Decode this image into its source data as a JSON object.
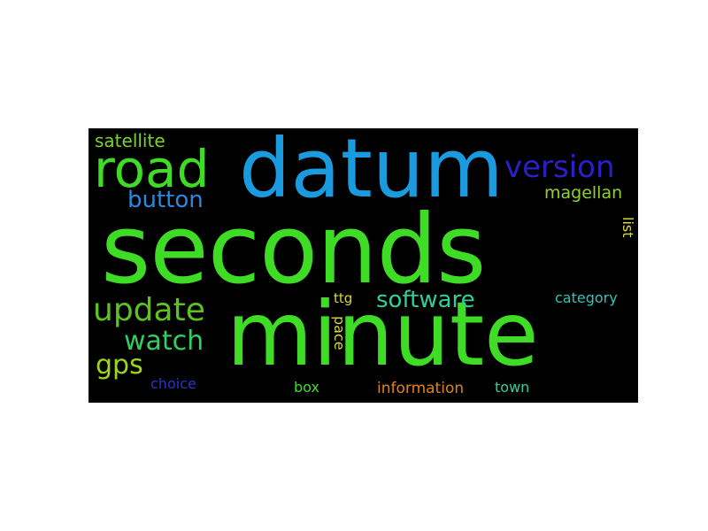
{
  "colors": {
    "background": "#000000",
    "page": "#ffffff"
  },
  "words": [
    {
      "text": "seconds",
      "color": "#3fdc25",
      "rank": 1
    },
    {
      "text": "minute",
      "color": "#3fdc25",
      "rank": 2
    },
    {
      "text": "datum",
      "color": "#1a9be0",
      "rank": 3
    },
    {
      "text": "road",
      "color": "#3fdc25",
      "rank": 4
    },
    {
      "text": "version",
      "color": "#2b1fc8",
      "rank": 5
    },
    {
      "text": "update",
      "color": "#5cc41e",
      "rank": 6
    },
    {
      "text": "watch",
      "color": "#2fcf60",
      "rank": 7
    },
    {
      "text": "gps",
      "color": "#9cd61e",
      "rank": 8
    },
    {
      "text": "software",
      "color": "#2fcf9a",
      "rank": 9
    },
    {
      "text": "button",
      "color": "#2a88e0",
      "rank": 10
    },
    {
      "text": "satellite",
      "color": "#7cd12a",
      "rank": 11
    },
    {
      "text": "magellan",
      "color": "#8ed32a",
      "rank": 12
    },
    {
      "text": "category",
      "color": "#2ec5b8",
      "rank": 13
    },
    {
      "text": "information",
      "color": "#e0821a",
      "rank": 14
    },
    {
      "text": "choice",
      "color": "#2a35c8",
      "rank": 15
    },
    {
      "text": "town",
      "color": "#2fcf9a",
      "rank": 16
    },
    {
      "text": "box",
      "color": "#3fdc25",
      "rank": 17
    },
    {
      "text": "ttg",
      "color": "#d9d93a",
      "rank": 18
    },
    {
      "text": "pace",
      "color": "#d9d93a",
      "rank": 19
    },
    {
      "text": "list",
      "color": "#d9d93a",
      "rank": 20
    }
  ]
}
